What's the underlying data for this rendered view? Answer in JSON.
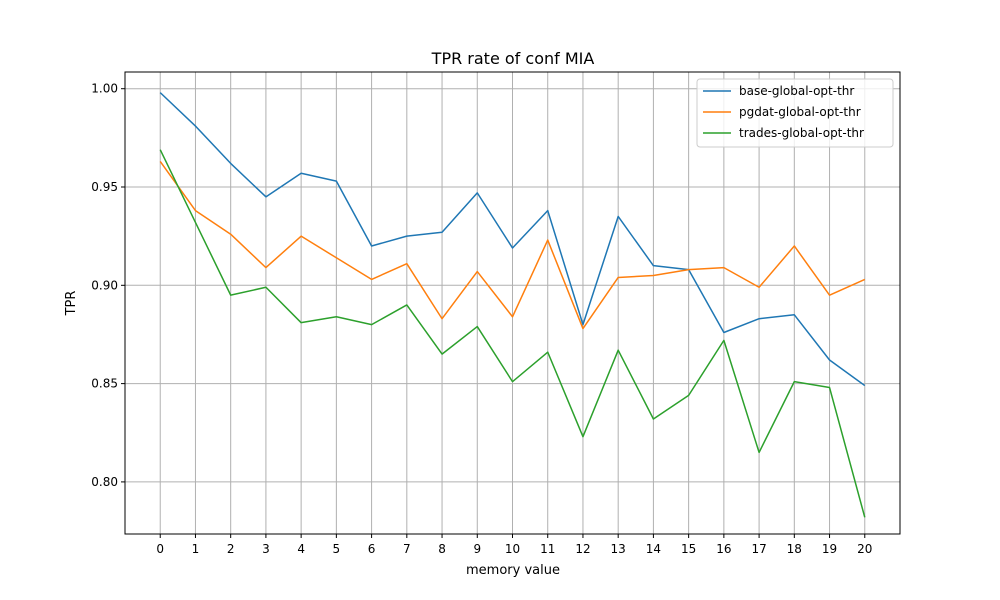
{
  "chart_data": {
    "type": "line",
    "title": "TPR rate of conf MIA",
    "xlabel": "memory value",
    "ylabel": "TPR",
    "x": [
      0,
      1,
      2,
      3,
      4,
      5,
      6,
      7,
      8,
      9,
      10,
      11,
      12,
      13,
      14,
      15,
      16,
      17,
      18,
      19,
      20
    ],
    "xlim": [
      -1,
      21
    ],
    "ylim": [
      0.7735,
      1.0085
    ],
    "yticks": [
      0.8,
      0.85,
      0.9,
      0.95,
      1.0
    ],
    "ytick_labels": [
      "0.80",
      "0.85",
      "0.90",
      "0.95",
      "1.00"
    ],
    "grid": true,
    "legend_position": "top-right",
    "series": [
      {
        "name": "base-global-opt-thr",
        "color": "#1f77b4",
        "values": [
          0.998,
          0.981,
          0.962,
          0.945,
          0.957,
          0.953,
          0.92,
          0.925,
          0.927,
          0.947,
          0.919,
          0.938,
          0.88,
          0.935,
          0.91,
          0.908,
          0.876,
          0.883,
          0.885,
          0.862,
          0.849
        ]
      },
      {
        "name": "pgdat-global-opt-thr",
        "color": "#ff7f0e",
        "values": [
          0.963,
          0.938,
          0.926,
          0.909,
          0.925,
          0.914,
          0.903,
          0.911,
          0.883,
          0.907,
          0.884,
          0.923,
          0.878,
          0.904,
          0.905,
          0.908,
          0.909,
          0.899,
          0.92,
          0.895,
          0.903
        ]
      },
      {
        "name": "trades-global-opt-thr",
        "color": "#2ca02c",
        "values": [
          0.969,
          0.932,
          0.895,
          0.899,
          0.881,
          0.884,
          0.88,
          0.89,
          0.865,
          0.879,
          0.851,
          0.866,
          0.823,
          0.867,
          0.832,
          0.844,
          0.872,
          0.815,
          0.851,
          0.848,
          0.782
        ]
      }
    ]
  }
}
